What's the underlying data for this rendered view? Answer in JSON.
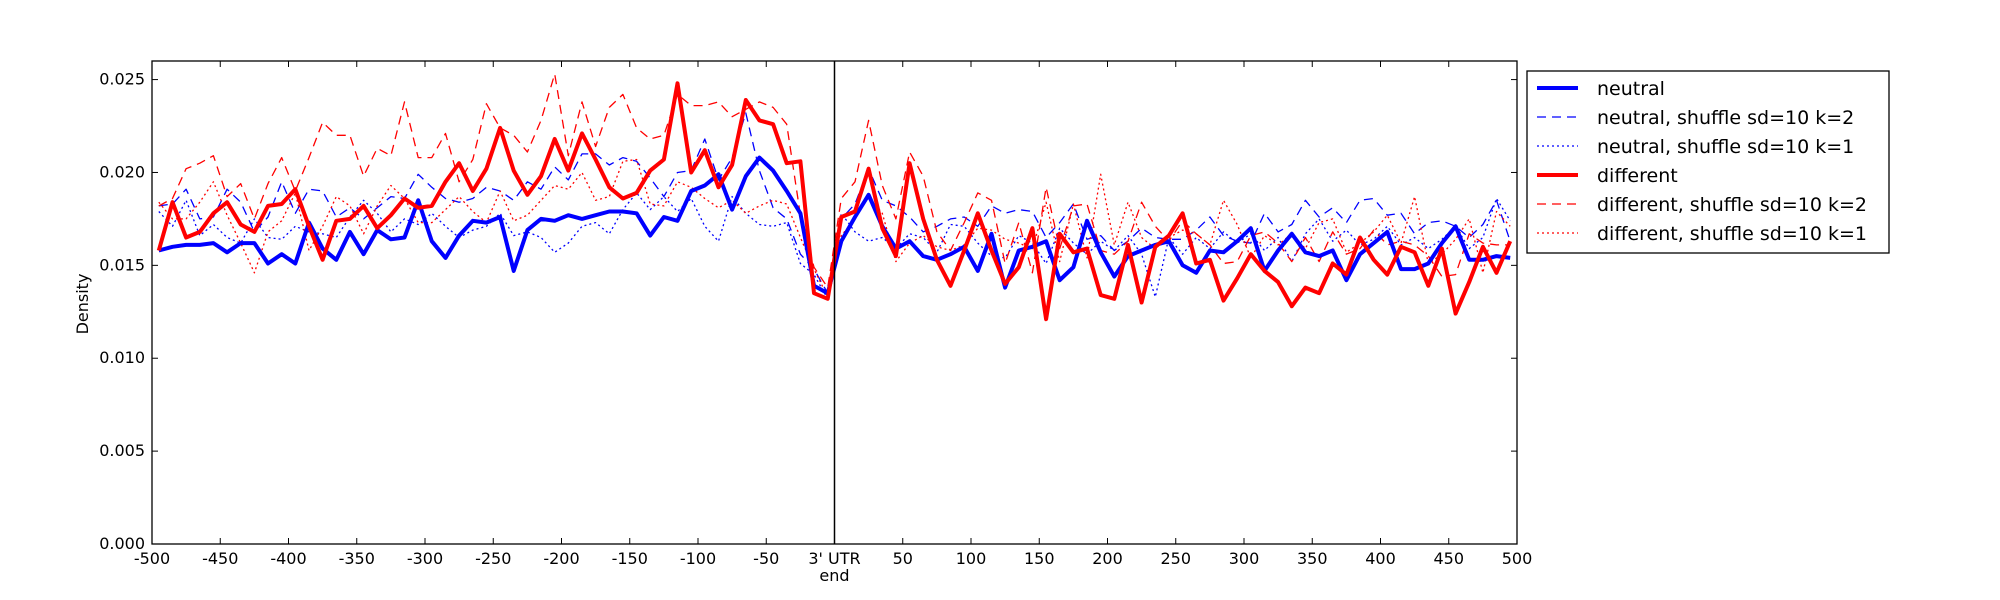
{
  "chart_data": {
    "type": "line",
    "title": "",
    "xlabel": "",
    "ylabel": "Density",
    "xlim": [
      -500,
      500
    ],
    "ylim": [
      0,
      0.026
    ],
    "grid": false,
    "legend_position": "outside-right-top",
    "divider_x": 0,
    "divider_label": "3' UTR\nend",
    "x_ticks": [
      -500,
      -450,
      -400,
      -350,
      -300,
      -250,
      -200,
      -150,
      -100,
      -50,
      0,
      50,
      100,
      150,
      200,
      250,
      300,
      350,
      400,
      450,
      500
    ],
    "x_tick_labels": [
      "-500",
      "-450",
      "-400",
      "-350",
      "-300",
      "-250",
      "-200",
      "-150",
      "-100",
      "-50",
      "3' UTR",
      "50",
      "100",
      "150",
      "200",
      "250",
      "300",
      "350",
      "400",
      "450",
      "500"
    ],
    "x_tick_label_extra": "end",
    "y_ticks": [
      0.0,
      0.005,
      0.01,
      0.015,
      0.02,
      0.025
    ],
    "y_tick_labels": [
      "0.000",
      "0.005",
      "0.010",
      "0.015",
      "0.020",
      "0.025"
    ],
    "x": [
      -495,
      -485,
      -475,
      -465,
      -455,
      -445,
      -435,
      -425,
      -415,
      -405,
      -395,
      -385,
      -375,
      -365,
      -355,
      -345,
      -335,
      -325,
      -315,
      -305,
      -295,
      -285,
      -275,
      -265,
      -255,
      -245,
      -235,
      -225,
      -215,
      -205,
      -195,
      -185,
      -175,
      -165,
      -155,
      -145,
      -135,
      -125,
      -115,
      -105,
      -95,
      -85,
      -75,
      -65,
      -55,
      -45,
      -35,
      -25,
      -15,
      -5,
      5,
      15,
      25,
      35,
      45,
      55,
      65,
      75,
      85,
      95,
      105,
      115,
      125,
      135,
      145,
      155,
      165,
      175,
      185,
      195,
      205,
      215,
      225,
      235,
      245,
      255,
      265,
      275,
      285,
      295,
      305,
      315,
      325,
      335,
      345,
      355,
      365,
      375,
      385,
      395,
      405,
      415,
      425,
      435,
      445,
      455,
      465,
      475,
      485,
      495
    ],
    "series": [
      {
        "name": "neutral",
        "color": "#0000ff",
        "style": "solid",
        "width": 4,
        "values": [
          0.0158,
          0.016,
          0.0161,
          0.0161,
          0.0162,
          0.0157,
          0.0162,
          0.0162,
          0.0151,
          0.0156,
          0.0151,
          0.0173,
          0.0159,
          0.0153,
          0.0168,
          0.0156,
          0.0169,
          0.0164,
          0.0165,
          0.0185,
          0.0163,
          0.0154,
          0.0166,
          0.0174,
          0.0173,
          0.0176,
          0.0147,
          0.0169,
          0.0175,
          0.0174,
          0.0177,
          0.0175,
          0.0177,
          0.0179,
          0.0179,
          0.0178,
          0.0166,
          0.0176,
          0.0174,
          0.019,
          0.0193,
          0.0199,
          0.018,
          0.0198,
          0.0208,
          0.0201,
          0.019,
          0.0178,
          0.0139,
          0.0135,
          0.0163,
          0.0176,
          0.0188,
          0.0171,
          0.0159,
          0.0163,
          0.0155,
          0.0153,
          0.0156,
          0.016,
          0.0147,
          0.0167,
          0.0138,
          0.0158,
          0.016,
          0.0163,
          0.0142,
          0.0149,
          0.0174,
          0.0157,
          0.0144,
          0.0155,
          0.0158,
          0.0161,
          0.0163,
          0.015,
          0.0146,
          0.0158,
          0.0157,
          0.0163,
          0.017,
          0.0147,
          0.0158,
          0.0167,
          0.0157,
          0.0155,
          0.0158,
          0.0142,
          0.0156,
          0.0162,
          0.0168,
          0.0148,
          0.0148,
          0.0151,
          0.0162,
          0.0171,
          0.0153,
          0.0153,
          0.0155,
          0.0154
        ]
      },
      {
        "name": "neutral, shuffle sd=10 k=2",
        "color": "#0000ff",
        "style": "dashed",
        "width": 1.3,
        "values": [
          0.0182,
          0.0183,
          0.0191,
          0.0175,
          0.0176,
          0.0191,
          0.0184,
          0.0168,
          0.0176,
          0.0195,
          0.0178,
          0.0191,
          0.019,
          0.0176,
          0.0181,
          0.0175,
          0.0181,
          0.0187,
          0.0186,
          0.0199,
          0.0192,
          0.0186,
          0.0184,
          0.0186,
          0.0192,
          0.019,
          0.0185,
          0.0195,
          0.0191,
          0.0203,
          0.0196,
          0.021,
          0.021,
          0.0204,
          0.0208,
          0.0206,
          0.0197,
          0.0187,
          0.02,
          0.0201,
          0.0218,
          0.0196,
          0.0208,
          0.0232,
          0.0201,
          0.0181,
          0.0175,
          0.0156,
          0.0148,
          0.0135,
          0.0175,
          0.0183,
          0.0202,
          0.0185,
          0.0182,
          0.0176,
          0.0168,
          0.0171,
          0.0175,
          0.0176,
          0.0171,
          0.0182,
          0.0178,
          0.018,
          0.0179,
          0.0165,
          0.0173,
          0.0183,
          0.0164,
          0.0166,
          0.0158,
          0.0163,
          0.017,
          0.0165,
          0.0164,
          0.0164,
          0.0169,
          0.0176,
          0.0166,
          0.0163,
          0.0162,
          0.0178,
          0.0168,
          0.0172,
          0.0185,
          0.0176,
          0.0181,
          0.0173,
          0.0185,
          0.0186,
          0.0177,
          0.0178,
          0.0167,
          0.0173,
          0.0174,
          0.0171,
          0.0165,
          0.0172,
          0.0185,
          0.0163
        ]
      },
      {
        "name": "neutral, shuffle sd=10 k=1",
        "color": "#0000ff",
        "style": "dotted",
        "width": 1.3,
        "values": [
          0.0179,
          0.0171,
          0.0185,
          0.0166,
          0.0172,
          0.0165,
          0.0162,
          0.0175,
          0.0165,
          0.0164,
          0.0171,
          0.0168,
          0.0167,
          0.0165,
          0.0176,
          0.0185,
          0.0178,
          0.0168,
          0.0175,
          0.0172,
          0.0178,
          0.0171,
          0.0165,
          0.0169,
          0.0171,
          0.0178,
          0.0166,
          0.0168,
          0.0165,
          0.0157,
          0.0162,
          0.0171,
          0.0173,
          0.0167,
          0.018,
          0.0189,
          0.018,
          0.0187,
          0.0179,
          0.0186,
          0.0171,
          0.0163,
          0.0187,
          0.0178,
          0.0172,
          0.0171,
          0.0173,
          0.0151,
          0.0145,
          0.0132,
          0.0178,
          0.0168,
          0.0163,
          0.0165,
          0.0159,
          0.0167,
          0.0165,
          0.0157,
          0.0172,
          0.0171,
          0.0162,
          0.0155,
          0.0154,
          0.0166,
          0.0162,
          0.0151,
          0.017,
          0.0162,
          0.0156,
          0.0163,
          0.0158,
          0.0166,
          0.0156,
          0.0133,
          0.0165,
          0.0156,
          0.0165,
          0.0159,
          0.0168,
          0.0162,
          0.0167,
          0.0158,
          0.0165,
          0.0152,
          0.0167,
          0.0175,
          0.0163,
          0.0169,
          0.0161,
          0.0164,
          0.0171,
          0.0161,
          0.0165,
          0.0159,
          0.0164,
          0.0171,
          0.0159,
          0.0165,
          0.0186,
          0.0174
        ]
      },
      {
        "name": "different",
        "color": "#ff0000",
        "style": "solid",
        "width": 4,
        "values": [
          0.0158,
          0.0184,
          0.0165,
          0.0168,
          0.0178,
          0.0184,
          0.0172,
          0.0168,
          0.0182,
          0.0183,
          0.0191,
          0.0171,
          0.0153,
          0.0174,
          0.0175,
          0.0182,
          0.017,
          0.0177,
          0.0186,
          0.0181,
          0.0182,
          0.0195,
          0.0205,
          0.019,
          0.0202,
          0.0224,
          0.0201,
          0.0188,
          0.0198,
          0.0218,
          0.0201,
          0.0221,
          0.0207,
          0.0192,
          0.0186,
          0.0189,
          0.0201,
          0.0207,
          0.0248,
          0.02,
          0.0212,
          0.0192,
          0.0204,
          0.0239,
          0.0228,
          0.0226,
          0.0205,
          0.0206,
          0.0135,
          0.0132,
          0.0176,
          0.0179,
          0.0202,
          0.017,
          0.0155,
          0.0205,
          0.0175,
          0.0153,
          0.0139,
          0.0158,
          0.0178,
          0.0158,
          0.014,
          0.0149,
          0.017,
          0.0121,
          0.0167,
          0.0157,
          0.0159,
          0.0134,
          0.0132,
          0.0161,
          0.013,
          0.016,
          0.0166,
          0.0178,
          0.0151,
          0.0153,
          0.0131,
          0.0143,
          0.0156,
          0.0147,
          0.0141,
          0.0128,
          0.0138,
          0.0135,
          0.0151,
          0.0145,
          0.0165,
          0.0153,
          0.0145,
          0.016,
          0.0157,
          0.0139,
          0.0159,
          0.0124,
          0.0141,
          0.016,
          0.0146,
          0.0163
        ]
      },
      {
        "name": "different, shuffle sd=10 k=2",
        "color": "#ff0000",
        "style": "dashed",
        "width": 1.3,
        "values": [
          0.0182,
          0.0186,
          0.0202,
          0.0205,
          0.0209,
          0.0187,
          0.0194,
          0.0175,
          0.0194,
          0.0208,
          0.019,
          0.0208,
          0.0227,
          0.022,
          0.022,
          0.0198,
          0.0213,
          0.0209,
          0.0238,
          0.0208,
          0.0208,
          0.0221,
          0.0195,
          0.0207,
          0.0237,
          0.0224,
          0.022,
          0.0211,
          0.0228,
          0.0253,
          0.0209,
          0.0238,
          0.0214,
          0.0235,
          0.0242,
          0.0224,
          0.0218,
          0.022,
          0.0242,
          0.0236,
          0.0236,
          0.0238,
          0.023,
          0.0234,
          0.0238,
          0.0235,
          0.0226,
          0.0177,
          0.0149,
          0.0138,
          0.0186,
          0.0195,
          0.0228,
          0.0193,
          0.0175,
          0.0211,
          0.0198,
          0.0168,
          0.0158,
          0.0173,
          0.0189,
          0.0185,
          0.0151,
          0.0173,
          0.0146,
          0.0192,
          0.0159,
          0.0182,
          0.0183,
          0.0158,
          0.0156,
          0.0163,
          0.0184,
          0.0171,
          0.0163,
          0.0174,
          0.0167,
          0.0161,
          0.0151,
          0.0152,
          0.0166,
          0.0168,
          0.0162,
          0.0152,
          0.0165,
          0.0152,
          0.0168,
          0.0156,
          0.0159,
          0.0169,
          0.0161,
          0.0163,
          0.0161,
          0.0155,
          0.0144,
          0.0145,
          0.0167,
          0.0162,
          0.0161,
          0.0161
        ]
      },
      {
        "name": "different, shuffle sd=10 k=1",
        "color": "#ff0000",
        "style": "dotted",
        "width": 1.3,
        "values": [
          0.0184,
          0.0175,
          0.0175,
          0.0184,
          0.0195,
          0.0177,
          0.0162,
          0.0146,
          0.0168,
          0.0174,
          0.0189,
          0.0158,
          0.0171,
          0.0187,
          0.0182,
          0.0167,
          0.0182,
          0.0193,
          0.0186,
          0.0173,
          0.0173,
          0.018,
          0.0187,
          0.0179,
          0.0173,
          0.019,
          0.0174,
          0.0177,
          0.0185,
          0.0193,
          0.0191,
          0.02,
          0.0185,
          0.0187,
          0.0206,
          0.0207,
          0.0183,
          0.0182,
          0.0195,
          0.0192,
          0.0186,
          0.0181,
          0.0185,
          0.0178,
          0.0182,
          0.0185,
          0.0183,
          0.0165,
          0.0148,
          0.0133,
          0.0166,
          0.0175,
          0.0187,
          0.0178,
          0.0152,
          0.0162,
          0.0166,
          0.016,
          0.0158,
          0.0161,
          0.017,
          0.0169,
          0.0164,
          0.0162,
          0.0159,
          0.0184,
          0.0152,
          0.0183,
          0.0154,
          0.0199,
          0.0161,
          0.0184,
          0.0165,
          0.0159,
          0.0165,
          0.0169,
          0.0167,
          0.0161,
          0.0185,
          0.0172,
          0.0154,
          0.0166,
          0.0161,
          0.0167,
          0.0159,
          0.0173,
          0.0175,
          0.0157,
          0.0162,
          0.0168,
          0.0177,
          0.0162,
          0.0187,
          0.0151,
          0.0156,
          0.0164,
          0.0175,
          0.0146,
          0.0179,
          0.0171
        ]
      }
    ]
  }
}
